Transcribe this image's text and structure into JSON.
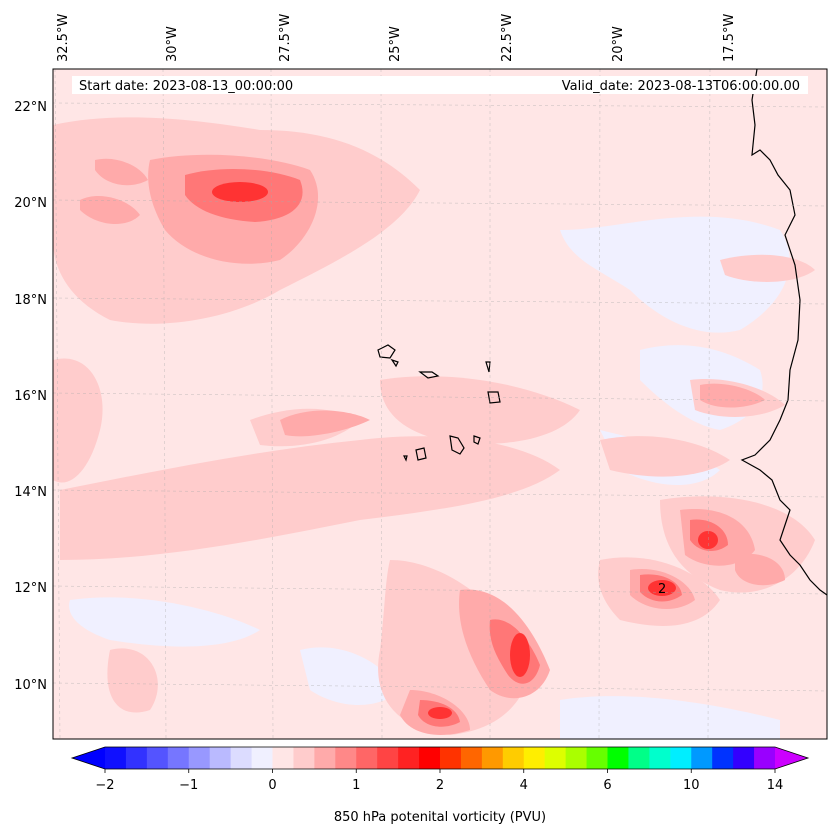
{
  "header": {
    "start_date": "Start date: 2023-08-13_00:00:00",
    "valid_date": "Valid_date: 2023-08-13T06:00:00.00"
  },
  "axes": {
    "lon_labels": [
      "32.5°W",
      "30°W",
      "27.5°W",
      "25°W",
      "22.5°W",
      "20°W",
      "17.5°W"
    ],
    "lat_labels": [
      "22°N",
      "20°N",
      "18°N",
      "16°N",
      "14°N",
      "12°N",
      "10°N"
    ],
    "extent": {
      "lon_min": -33,
      "lon_max": -15.3,
      "lat_min": 9,
      "lat_max": 22.8
    }
  },
  "colorbar": {
    "label": "850 hPa potenital vorticity (PVU)",
    "ticks": [
      "-2",
      "-1",
      "0",
      "1",
      "2",
      "4",
      "6",
      "10",
      "14"
    ],
    "colors": [
      "#1010ff",
      "#3232ff",
      "#5454ff",
      "#7676ff",
      "#9898ff",
      "#babaff",
      "#dcdcff",
      "#f0f0ff",
      "#ffe6e6",
      "#ffcccc",
      "#ffaaaa",
      "#ff8888",
      "#ff6666",
      "#ff4444",
      "#ff2222",
      "#ff0000",
      "#ff3300",
      "#ff6600",
      "#ff9900",
      "#ffcc00",
      "#ffee00",
      "#ddff00",
      "#aaff00",
      "#66ff00",
      "#00ff00",
      "#00ff88",
      "#00ffcc",
      "#00eeff",
      "#0099ff",
      "#0033ff",
      "#3300ff",
      "#9900ff"
    ],
    "under_color": "#0000ff",
    "over_color": "#cc00ff"
  },
  "annotations": {
    "contour_label": "2"
  }
}
